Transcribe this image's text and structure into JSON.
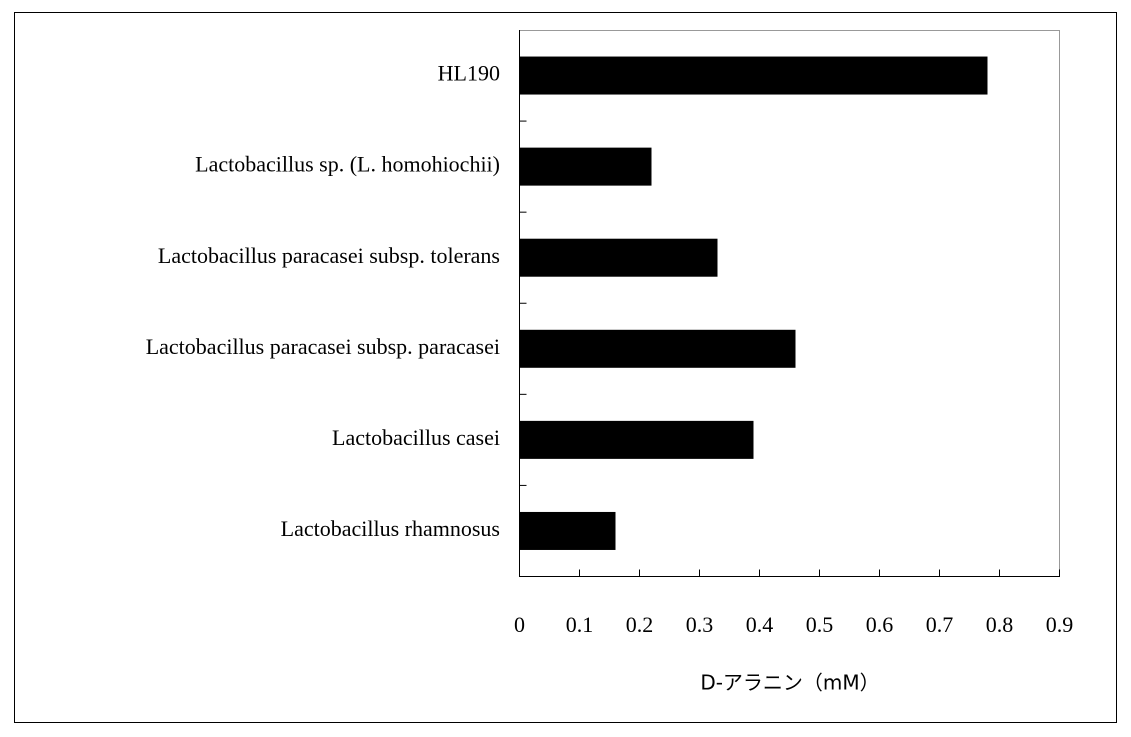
{
  "chart_data": {
    "type": "barh",
    "categories": [
      "HL190",
      "Lactobacillus sp. (L. homohiochii)",
      "Lactobacillus paracasei subsp. tolerans",
      "Lactobacillus paracasei subsp. paracasei",
      "Lactobacillus casei",
      "Lactobacillus rhamnosus"
    ],
    "values": [
      0.78,
      0.22,
      0.33,
      0.46,
      0.39,
      0.16
    ],
    "color": "#000000",
    "x_label": "D-アラニン（mM）",
    "xlim": [
      0,
      0.9
    ],
    "xticks": [
      0,
      0.1,
      0.2,
      0.3,
      0.4,
      0.5,
      0.6,
      0.7,
      0.8,
      0.9
    ],
    "grid": false
  }
}
